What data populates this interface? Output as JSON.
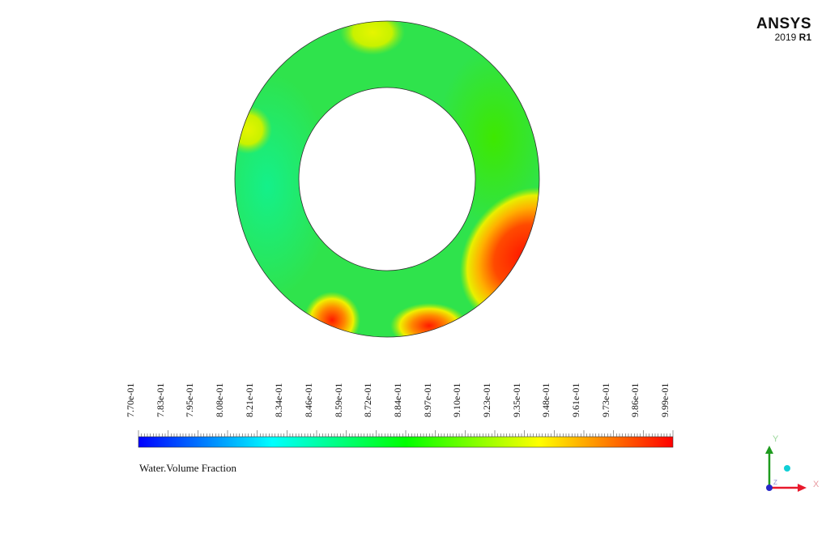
{
  "logo": {
    "brand": "ANSYS",
    "version_year": "2019",
    "version_release": "R1"
  },
  "colorbar": {
    "variable": "Water.Volume Fraction",
    "min": 0.77,
    "max": 0.999,
    "tick_labels": [
      "7.70e-01",
      "7.83e-01",
      "7.95e-01",
      "8.08e-01",
      "8.21e-01",
      "8.34e-01",
      "8.46e-01",
      "8.59e-01",
      "8.72e-01",
      "8.84e-01",
      "8.97e-01",
      "9.10e-01",
      "9.23e-01",
      "9.35e-01",
      "9.48e-01",
      "9.61e-01",
      "9.73e-01",
      "9.86e-01",
      "9.99e-01"
    ],
    "colormap": [
      "#0000ff",
      "#00ffff",
      "#00ff00",
      "#ffff00",
      "#ff0000"
    ]
  },
  "axes_triad": {
    "x_label": "X",
    "y_label": "Y",
    "z_label": "Z",
    "x_color": "#e8192c",
    "y_color": "#1e9b1e",
    "z_color": "#2727c8"
  },
  "contour": {
    "geometry": "annulus",
    "base_color": "#33e14a",
    "hotspot_color": "#ff2200",
    "mid_color": "#ffee00"
  }
}
